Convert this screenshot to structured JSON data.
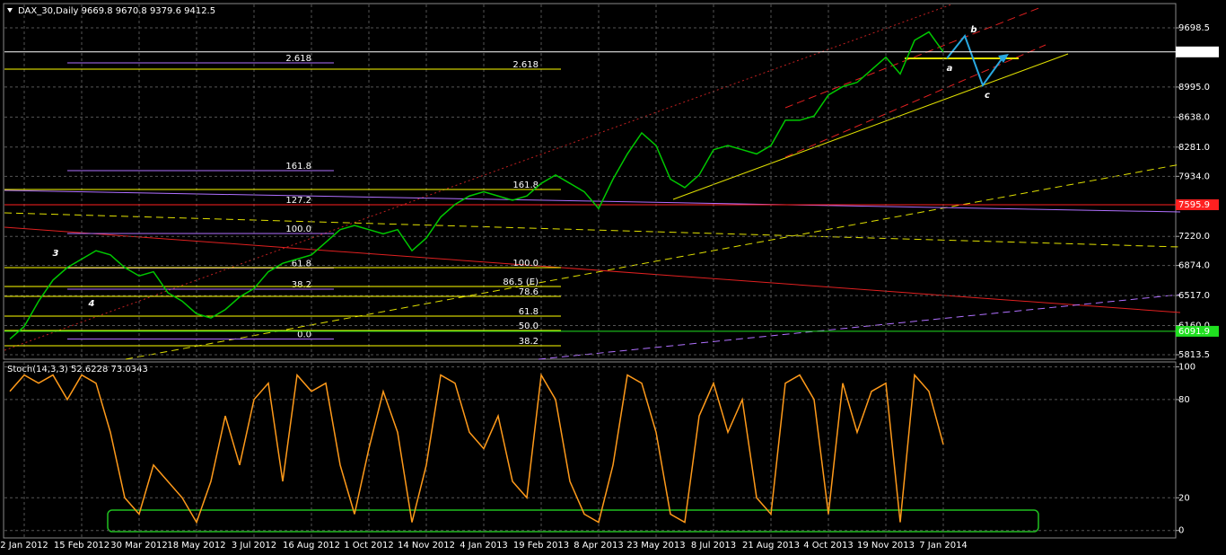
{
  "chart_data": [
    {
      "type": "line",
      "title": "DAX_30,Daily  9669.8 9670.8 9379.6 9412.5",
      "color": "#00c800",
      "categories": [
        null,
        "2 Jan 2012",
        null,
        null,
        null,
        "15 Feb 2012",
        null,
        null,
        null,
        "30 Mar 2012",
        null,
        null,
        null,
        "18 May 2012",
        null,
        null,
        null,
        "3 Jul 2012",
        null,
        null,
        null,
        "16 Aug 2012",
        null,
        null,
        null,
        "1 Oct 2012",
        null,
        null,
        null,
        "14 Nov 2012",
        null,
        null,
        null,
        "4 Jan 2013",
        null,
        null,
        null,
        "19 Feb 2013",
        null,
        null,
        null,
        "8 Apr 2013",
        null,
        null,
        null,
        "23 May 2013",
        null,
        null,
        null,
        "8 Jul 2013",
        null,
        null,
        null,
        "21 Aug 2013",
        null,
        null,
        null,
        "4 Oct 2013",
        null,
        null,
        null,
        "19 Nov 2013",
        null,
        null,
        null,
        "7 Jan 2014"
      ],
      "values": [
        6000,
        6150,
        6450,
        6700,
        6850,
        6950,
        7050,
        7000,
        6850,
        6750,
        6800,
        6550,
        6450,
        6300,
        6250,
        6350,
        6500,
        6600,
        6800,
        6900,
        6950,
        7000,
        7150,
        7300,
        7350,
        7300,
        7250,
        7300,
        7050,
        7200,
        7450,
        7600,
        7700,
        7750,
        7700,
        7650,
        7700,
        7850,
        7950,
        7850,
        7750,
        7550,
        7900,
        8200,
        8450,
        8300,
        7900,
        7800,
        7950,
        8250,
        8300,
        8250,
        8200,
        8300,
        8600,
        8600,
        8650,
        8900,
        9000,
        9050,
        9200,
        9350,
        9150,
        9550,
        9650,
        9412.5
      ],
      "ylim": [
        5760,
        9976
      ],
      "yticks": [
        9698.5,
        {
          "value": 8995,
          "label": "8995.0"
        },
        {
          "value": 8638,
          "label": "8638.0"
        },
        {
          "value": 8281,
          "label": "8281.0"
        },
        {
          "value": 7934,
          "label": "7934.0"
        },
        {
          "value": 7220,
          "label": "7220.0"
        },
        {
          "value": 6874,
          "label": "6874.0"
        },
        {
          "value": 6517,
          "label": "6517.0"
        },
        {
          "value": 6160,
          "label": "6160.0"
        },
        5813.5
      ],
      "grid": true,
      "price_markers": [
        {
          "value": 9412.5,
          "color": "#ffffff"
        },
        {
          "value": 7595.9,
          "color": "#ff2020"
        },
        {
          "value": 6091.9,
          "color": "#20e020"
        }
      ],
      "fib_sets": [
        {
          "color": "#b070ff",
          "levels": [
            {
              "label": "2.618",
              "value": 9282
            },
            {
              "label": "161.8",
              "value": 8001
            },
            {
              "label": "127.2",
              "value": 7596
            },
            {
              "label": "100.0",
              "value": 7254
            },
            {
              "label": "61.8",
              "value": 6844
            },
            {
              "label": "38.2",
              "value": 6592
            },
            {
              "label": "0.0",
              "value": 6000
            }
          ]
        },
        {
          "color": "#ffff00",
          "levels": [
            {
              "label": "2.618",
              "value": 9207
            },
            {
              "label": "161.8",
              "value": 7777
            },
            {
              "label": "100.0",
              "value": 6849
            },
            {
              "label": "86.5 (E)",
              "value": 6625
            },
            {
              "label": "78.6",
              "value": 6507
            },
            {
              "label": "61.8",
              "value": 6272
            },
            {
              "label": "50.0",
              "value": 6102
            },
            {
              "label": "38.2",
              "value": 5920
            }
          ]
        }
      ],
      "annotations": [
        "3",
        "4",
        "a",
        "b",
        "c"
      ]
    },
    {
      "type": "line",
      "title": "Stoch(14,3,3) 52.6228 73.0343",
      "color": "#ff9a1a",
      "values": [
        85,
        95,
        90,
        95,
        80,
        95,
        90,
        60,
        20,
        10,
        40,
        30,
        20,
        5,
        30,
        70,
        40,
        80,
        90,
        30,
        95,
        85,
        90,
        40,
        10,
        50,
        85,
        60,
        5,
        40,
        95,
        90,
        60,
        50,
        70,
        30,
        20,
        95,
        80,
        30,
        10,
        5,
        40,
        95,
        90,
        60,
        10,
        5,
        70,
        90,
        60,
        80,
        20,
        10,
        90,
        95,
        80,
        10,
        90,
        60,
        85,
        90,
        5,
        95,
        85,
        52.6
      ],
      "ylim": [
        -4,
        103
      ],
      "yticks": [
        0,
        20,
        80,
        100
      ],
      "grid": true
    }
  ]
}
